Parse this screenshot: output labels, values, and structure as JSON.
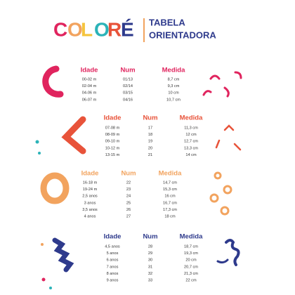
{
  "logo": {
    "letters": [
      "C",
      "O",
      "L",
      "O",
      "R",
      "É"
    ]
  },
  "header": {
    "title_line1": "TABELA",
    "title_line2": "ORIENTADORA"
  },
  "tables": [
    {
      "headers": [
        "Idade",
        "Num",
        "Medida"
      ],
      "rows": [
        [
          "00-02 m",
          "01/13",
          "8,7 cm"
        ],
        [
          "02-04 m",
          "02/14",
          "9,3 cm"
        ],
        [
          "04-06 m",
          "03/15",
          "10 cm"
        ],
        [
          "06-07 m",
          "04/16",
          "10,7 cm"
        ]
      ]
    },
    {
      "headers": [
        "Idade",
        "Num",
        "Medida"
      ],
      "rows": [
        [
          "07-08 m",
          "17",
          "11,3 cm"
        ],
        [
          "08-09 m",
          "18",
          "12 cm"
        ],
        [
          "09-10 m",
          "19",
          "12,7 cm"
        ],
        [
          "10-12 m",
          "20",
          "13,3 cm"
        ],
        [
          "13-15 m",
          "21",
          "14 cm"
        ]
      ]
    },
    {
      "headers": [
        "Idade",
        "Num",
        "Medida"
      ],
      "rows": [
        [
          "16-18 m",
          "22",
          "14,7 cm"
        ],
        [
          "19-24 m",
          "23",
          "15,3 cm"
        ],
        [
          "2,5 anos",
          "24",
          "16 cm"
        ],
        [
          "3 anos",
          "25",
          "16,7 cm"
        ],
        [
          "3,5 anos",
          "26",
          "17,3 cm"
        ],
        [
          "4 anos",
          "27",
          "18 cm"
        ]
      ]
    },
    {
      "headers": [
        "Idade",
        "Num",
        "Medida"
      ],
      "rows": [
        [
          "4,5 anos",
          "28",
          "18,7 cm"
        ],
        [
          "5 anos",
          "29",
          "19,3 cm"
        ],
        [
          "6 anos",
          "30",
          "20 cm"
        ],
        [
          "7 anos",
          "31",
          "20,7 cm"
        ],
        [
          "8 anos",
          "32",
          "21,3 cm"
        ],
        [
          "9 anos",
          "33",
          "22 cm"
        ]
      ]
    }
  ]
}
